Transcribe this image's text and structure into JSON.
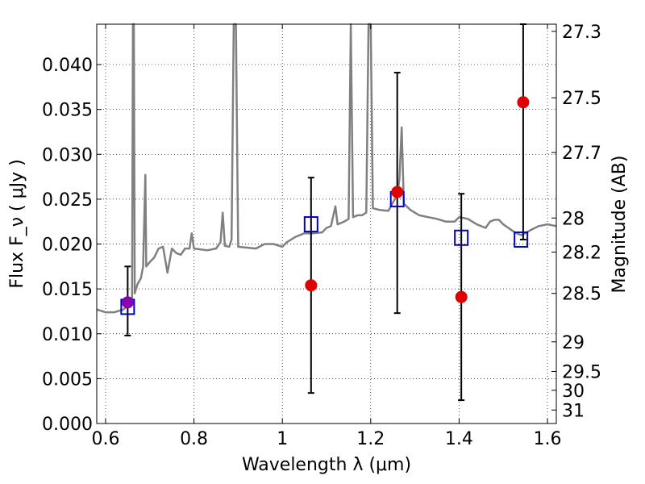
{
  "chart_data": {
    "type": "scatter",
    "xlabel": "Wavelength  λ (μm)",
    "ylabel": "Flux  F_ν  ( μJy )",
    "y2label": "Magnitude (AB)",
    "xlim": [
      0.58,
      1.62
    ],
    "ylim": [
      0.0,
      0.0445
    ],
    "grid": true,
    "x_ticks": [
      0.6,
      0.8,
      1.0,
      1.2,
      1.4,
      1.6
    ],
    "x_tick_labels": [
      "0.6",
      "0.8",
      "1",
      "1.2",
      "1.4",
      "1.6"
    ],
    "y_ticks": [
      0.0,
      0.005,
      0.01,
      0.015,
      0.02,
      0.025,
      0.03,
      0.035,
      0.04
    ],
    "y_tick_labels": [
      "0.000",
      "0.005",
      "0.010",
      "0.015",
      "0.020",
      "0.025",
      "0.030",
      "0.035",
      "0.040"
    ],
    "mag_ticks": [
      {
        "label": "27.3",
        "flux": 0.0437
      },
      {
        "label": "27.5",
        "flux": 0.0363
      },
      {
        "label": "27.7",
        "flux": 0.0302
      },
      {
        "label": "28",
        "flux": 0.0229
      },
      {
        "label": "28.2",
        "flux": 0.0191
      },
      {
        "label": "28.5",
        "flux": 0.0145
      },
      {
        "label": "29",
        "flux": 0.0091
      },
      {
        "label": "29.5",
        "flux": 0.0058
      },
      {
        "label": "30",
        "flux": 0.0037
      },
      {
        "label": "31",
        "flux": 0.0015
      }
    ],
    "spectrum": {
      "color": "#808080",
      "points": [
        [
          0.58,
          0.0127
        ],
        [
          0.6,
          0.0124
        ],
        [
          0.62,
          0.0124
        ],
        [
          0.64,
          0.0127
        ],
        [
          0.655,
          0.0133
        ],
        [
          0.66,
          0.0135
        ],
        [
          0.662,
          0.0445
        ],
        [
          0.664,
          0.0445
        ],
        [
          0.666,
          0.0145
        ],
        [
          0.672,
          0.0155
        ],
        [
          0.68,
          0.0162
        ],
        [
          0.685,
          0.0175
        ],
        [
          0.69,
          0.0277
        ],
        [
          0.692,
          0.0175
        ],
        [
          0.7,
          0.018
        ],
        [
          0.71,
          0.0185
        ],
        [
          0.72,
          0.0195
        ],
        [
          0.73,
          0.0197
        ],
        [
          0.74,
          0.0168
        ],
        [
          0.75,
          0.0195
        ],
        [
          0.76,
          0.019
        ],
        [
          0.77,
          0.0188
        ],
        [
          0.78,
          0.0195
        ],
        [
          0.79,
          0.0195
        ],
        [
          0.795,
          0.0212
        ],
        [
          0.8,
          0.0195
        ],
        [
          0.83,
          0.0193
        ],
        [
          0.85,
          0.0195
        ],
        [
          0.86,
          0.0202
        ],
        [
          0.865,
          0.0235
        ],
        [
          0.87,
          0.0198
        ],
        [
          0.88,
          0.0197
        ],
        [
          0.885,
          0.0205
        ],
        [
          0.89,
          0.0445
        ],
        [
          0.895,
          0.0445
        ],
        [
          0.9,
          0.0197
        ],
        [
          0.94,
          0.0195
        ],
        [
          0.96,
          0.02
        ],
        [
          0.98,
          0.02
        ],
        [
          1.0,
          0.0197
        ],
        [
          1.01,
          0.0202
        ],
        [
          1.03,
          0.0208
        ],
        [
          1.05,
          0.0212
        ],
        [
          1.07,
          0.0212
        ],
        [
          1.09,
          0.0213
        ],
        [
          1.1,
          0.0218
        ],
        [
          1.11,
          0.022
        ],
        [
          1.12,
          0.0242
        ],
        [
          1.125,
          0.0222
        ],
        [
          1.14,
          0.0225
        ],
        [
          1.15,
          0.0228
        ],
        [
          1.155,
          0.0445
        ],
        [
          1.16,
          0.023
        ],
        [
          1.17,
          0.0232
        ],
        [
          1.18,
          0.0232
        ],
        [
          1.19,
          0.0235
        ],
        [
          1.195,
          0.0445
        ],
        [
          1.2,
          0.0445
        ],
        [
          1.205,
          0.024
        ],
        [
          1.22,
          0.0238
        ],
        [
          1.24,
          0.0237
        ],
        [
          1.26,
          0.0255
        ],
        [
          1.265,
          0.0272
        ],
        [
          1.27,
          0.033
        ],
        [
          1.275,
          0.0245
        ],
        [
          1.29,
          0.0238
        ],
        [
          1.31,
          0.0232
        ],
        [
          1.33,
          0.023
        ],
        [
          1.35,
          0.0228
        ],
        [
          1.37,
          0.0225
        ],
        [
          1.39,
          0.0225
        ],
        [
          1.4,
          0.023
        ],
        [
          1.42,
          0.0228
        ],
        [
          1.44,
          0.0222
        ],
        [
          1.46,
          0.0218
        ],
        [
          1.47,
          0.0225
        ],
        [
          1.48,
          0.0227
        ],
        [
          1.49,
          0.0227
        ],
        [
          1.5,
          0.0222
        ],
        [
          1.52,
          0.0215
        ],
        [
          1.53,
          0.0212
        ],
        [
          1.54,
          0.021
        ],
        [
          1.55,
          0.0212
        ],
        [
          1.56,
          0.0215
        ],
        [
          1.58,
          0.022
        ],
        [
          1.6,
          0.0222
        ],
        [
          1.62,
          0.022
        ]
      ]
    },
    "measurements": [
      {
        "x": 0.65,
        "y": 0.0135,
        "yerr_low": 0.0098,
        "yerr_high": 0.0175,
        "color": "#8b00b0"
      },
      {
        "x": 1.065,
        "y": 0.0154,
        "yerr_low": 0.0034,
        "yerr_high": 0.0274,
        "color": "#e00000"
      },
      {
        "x": 1.26,
        "y": 0.0258,
        "yerr_low": 0.0123,
        "yerr_high": 0.0391,
        "color": "#e00000"
      },
      {
        "x": 1.405,
        "y": 0.0141,
        "yerr_low": 0.0026,
        "yerr_high": 0.0256,
        "color": "#e00000"
      },
      {
        "x": 1.545,
        "y": 0.0358,
        "yerr_low": 0.0205,
        "yerr_high": 0.0445,
        "color": "#e00000"
      }
    ],
    "model_points": [
      {
        "x": 0.65,
        "y": 0.013
      },
      {
        "x": 1.065,
        "y": 0.0222
      },
      {
        "x": 1.26,
        "y": 0.025
      },
      {
        "x": 1.405,
        "y": 0.0207
      },
      {
        "x": 1.54,
        "y": 0.0205
      }
    ],
    "model_color": "#0000cc",
    "errorbar_color": "#000000"
  }
}
